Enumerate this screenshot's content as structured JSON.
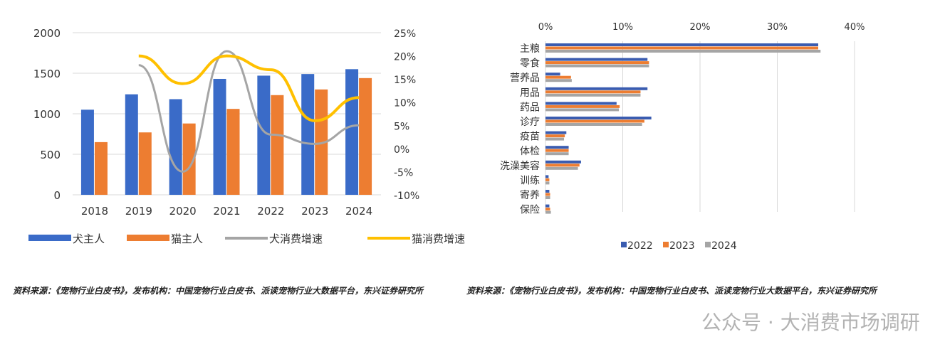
{
  "chart_data": [
    {
      "type": "bar+line",
      "categories": [
        "2018",
        "2019",
        "2020",
        "2021",
        "2022",
        "2023",
        "2024"
      ],
      "series": [
        {
          "name": "犬主人",
          "kind": "bar",
          "axis": "left",
          "color": "#3a6bc8",
          "values": [
            1050,
            1240,
            1180,
            1430,
            1470,
            1490,
            1550
          ]
        },
        {
          "name": "猫主人",
          "kind": "bar",
          "axis": "left",
          "color": "#ed7d31",
          "values": [
            650,
            770,
            880,
            1060,
            1230,
            1300,
            1440
          ]
        },
        {
          "name": "犬消费增速",
          "kind": "line",
          "axis": "right",
          "color": "#a5a5a5",
          "values": [
            null,
            18,
            -5,
            21,
            3,
            1,
            5
          ]
        },
        {
          "name": "猫消费增速",
          "kind": "line",
          "axis": "right",
          "color": "#ffc000",
          "values": [
            null,
            20,
            14,
            20,
            17,
            6,
            11
          ]
        }
      ],
      "ylim": [
        0,
        2000
      ],
      "yticks": [
        "0",
        "500",
        "1000",
        "1500",
        "2000"
      ],
      "y2lim": [
        -10,
        25
      ],
      "y2ticks": [
        "-10%",
        "-5%",
        "0%",
        "5%",
        "10%",
        "15%",
        "20%",
        "25%"
      ],
      "legend": "bottom"
    },
    {
      "type": "bar",
      "orientation": "horizontal",
      "categories": [
        "主粮",
        "零食",
        "营养品",
        "用品",
        "药品",
        "诊疗",
        "疫苗",
        "体检",
        "洗澡美容",
        "训练",
        "寄养",
        "保险"
      ],
      "series": [
        {
          "name": "2022",
          "color": "#3a5cb0",
          "values": [
            35.3,
            13.2,
            1.9,
            13.2,
            9.2,
            13.7,
            2.7,
            3.0,
            4.6,
            0.4,
            0.5,
            0.5
          ]
        },
        {
          "name": "2023",
          "color": "#ed7d31",
          "values": [
            35.3,
            13.4,
            3.3,
            12.3,
            9.6,
            12.8,
            2.5,
            3.0,
            4.4,
            0.5,
            0.6,
            0.6
          ]
        },
        {
          "name": "2024",
          "color": "#a5a5a5",
          "values": [
            35.6,
            13.4,
            3.4,
            12.3,
            9.5,
            12.5,
            2.4,
            3.0,
            4.2,
            0.5,
            0.6,
            0.7
          ]
        }
      ],
      "xlim": [
        0,
        40
      ],
      "xticks": [
        "0%",
        "10%",
        "20%",
        "30%",
        "40%"
      ],
      "legend": "bottom"
    }
  ],
  "sources": {
    "left": "资料来源：《宠物行业白皮书》，发布机构：中国宠物行业白皮书、派读宠物行业大数据平台，东兴证券研究所",
    "right": "资料来源：《宠物行业白皮书》，发布机构：中国宠物行业白皮书、派读宠物行业大数据平台，东兴证券研究所"
  },
  "watermark": "公众号 · 大消费市场调研"
}
